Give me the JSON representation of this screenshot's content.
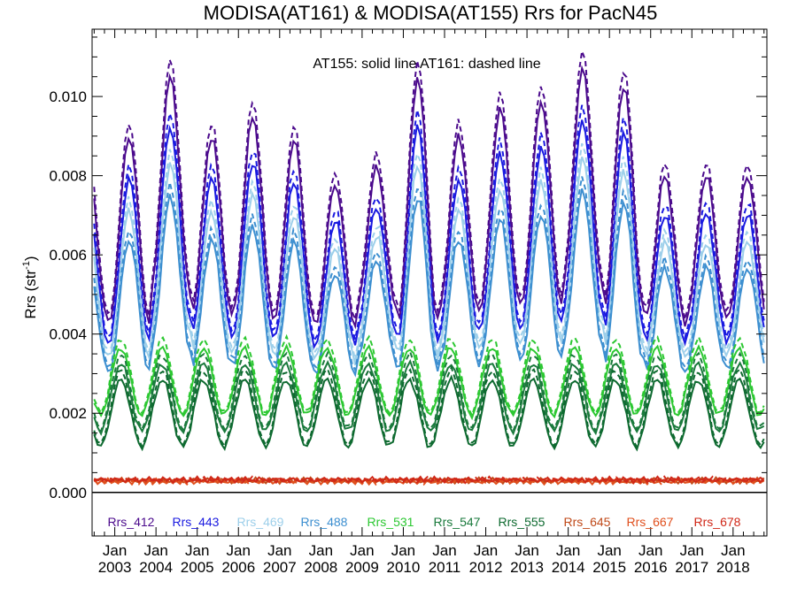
{
  "chart_data": {
    "type": "line",
    "title": "MODISA(AT161) & MODISA(AT155)  Rrs for PacN45",
    "note": "AT155: solid line   AT161: dashed line",
    "ylabel": "Rrs (str",
    "ylabel_sup": "-1",
    "ylabel_close": ")",
    "ylim": [
      -0.0011,
      0.0117
    ],
    "xlim": [
      2002.45,
      2018.82
    ],
    "yticks": [
      0.0,
      0.002,
      0.004,
      0.006,
      0.008,
      0.01
    ],
    "ytick_labels": [
      "0.000",
      "0.002",
      "0.004",
      "0.006",
      "0.008",
      "0.010"
    ],
    "xticks_month": "Jan",
    "xticks_years": [
      "2003",
      "2004",
      "2005",
      "2006",
      "2007",
      "2008",
      "2009",
      "2010",
      "2011",
      "2012",
      "2013",
      "2014",
      "2015",
      "2016",
      "2017",
      "2018"
    ],
    "zero_line": true,
    "legend_position": "bottom",
    "year_start": 2002.5,
    "peaks": [
      0.0083,
      0.009,
      0.0105,
      0.009,
      0.0095,
      0.0089,
      0.0078,
      0.0082,
      0.0105,
      0.009,
      0.0097,
      0.0099,
      0.0107,
      0.0103,
      0.008
    ],
    "troughs": [
      0.0043,
      0.0043,
      0.005,
      0.0045,
      0.0045,
      0.0043,
      0.0042,
      0.0046,
      0.0043,
      0.0046,
      0.0047,
      0.0048,
      0.0052,
      0.0046,
      0.0043,
      0.0044
    ],
    "series": [
      {
        "name": "Rrs_412",
        "color": "#4B0A8C",
        "scale": 1.0,
        "level": 0.0,
        "type": "blue"
      },
      {
        "name": "Rrs_443",
        "color": "#1A1AE0",
        "scale": 0.88,
        "level": 0.0,
        "type": "blue"
      },
      {
        "name": "Rrs_469",
        "color": "#9DCFEA",
        "scale": 0.79,
        "level": 0.0,
        "type": "blue"
      },
      {
        "name": "Rrs_488",
        "color": "#3D8FD0",
        "scale": 0.71,
        "level": 0.0,
        "type": "blue"
      },
      {
        "name": "Rrs_531",
        "color": "#2CC832",
        "scale": 1.0,
        "level": 0.0028,
        "type": "green"
      },
      {
        "name": "Rrs_547",
        "color": "#1A7A3C",
        "scale": 1.0,
        "level": 0.0024,
        "type": "green"
      },
      {
        "name": "Rrs_555",
        "color": "#0E6A30",
        "scale": 1.0,
        "level": 0.002,
        "type": "green"
      },
      {
        "name": "Rrs_645",
        "color": "#C04A1A",
        "scale": 1.0,
        "level": 0.0003,
        "type": "red"
      },
      {
        "name": "Rrs_667",
        "color": "#E0501E",
        "scale": 1.0,
        "level": 0.00028,
        "type": "red"
      },
      {
        "name": "Rrs_678",
        "color": "#D02818",
        "scale": 1.0,
        "level": 0.00032,
        "type": "red"
      }
    ]
  }
}
